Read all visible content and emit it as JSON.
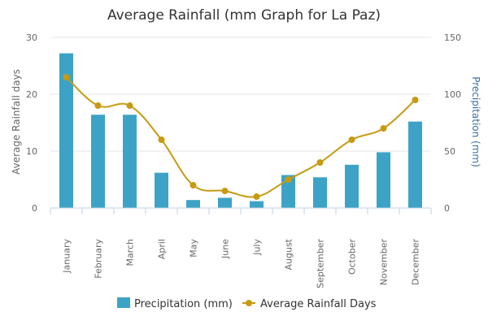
{
  "colors": {
    "bar": "#3ca3c6",
    "line": "#c89a12",
    "grid": "#e6e6e6",
    "axis": "#c0d0e0",
    "right_axis_title": "#3a6ea5"
  },
  "chart_data": {
    "type": "bar",
    "title": "Average Rainfall (mm Graph for La Paz)",
    "categories": [
      "January",
      "February",
      "March",
      "April",
      "May",
      "June",
      "July",
      "August",
      "September",
      "October",
      "November",
      "December"
    ],
    "y_left": {
      "label": "Average Rainfall days",
      "range": [
        0,
        30
      ],
      "ticks": [
        0,
        10,
        20,
        30
      ]
    },
    "y_right": {
      "label": "Precipitation (mm)",
      "range": [
        0,
        150
      ],
      "ticks": [
        0,
        50,
        100,
        150
      ]
    },
    "series": [
      {
        "name": "Precipitation (mm)",
        "type": "bar",
        "axis": "right",
        "values": [
          136,
          82,
          82,
          31,
          7,
          9,
          6,
          29,
          27,
          38,
          49,
          76
        ]
      },
      {
        "name": "Average Rainfall Days",
        "type": "line",
        "axis": "left",
        "values": [
          23,
          18,
          18,
          12,
          4,
          3,
          2,
          5,
          8,
          12,
          14,
          19
        ]
      }
    ],
    "grid": true,
    "legend": "bottom-center"
  }
}
